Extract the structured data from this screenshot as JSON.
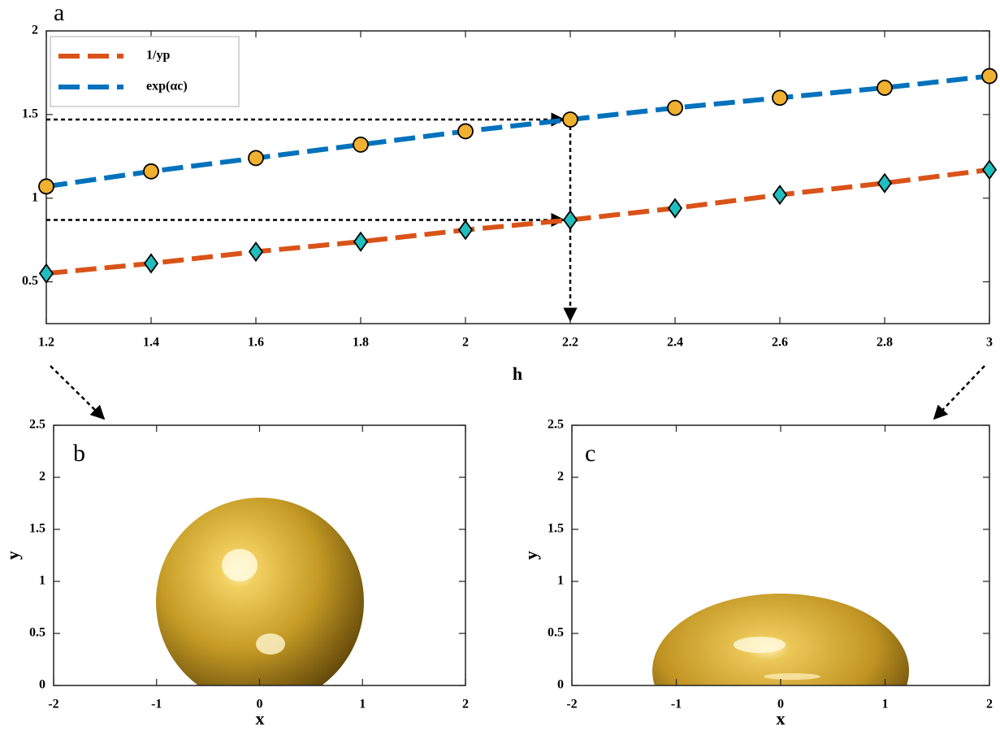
{
  "chart_data": [
    {
      "type": "line",
      "title": "a",
      "x_label": "h",
      "x": [
        1.2,
        1.4,
        1.6,
        1.8,
        2,
        2.2,
        2.4,
        2.6,
        2.8,
        3
      ],
      "series": [
        {
          "name": "1/yp",
          "color": "#d95319",
          "marker_color": "#1fbfbf",
          "marker": "diamond",
          "values": [
            0.55,
            0.61,
            0.68,
            0.74,
            0.81,
            0.87,
            0.94,
            1.02,
            1.09,
            1.17
          ]
        },
        {
          "name": "exp(αc)",
          "color": "#0072bd",
          "marker_color": "#f0b030",
          "marker": "circle",
          "values": [
            1.07,
            1.16,
            1.24,
            1.32,
            1.4,
            1.47,
            1.54,
            1.6,
            1.66,
            1.73
          ]
        }
      ],
      "xlim": [
        1.2,
        3
      ],
      "xticks": [
        1.2,
        1.4,
        1.6,
        1.8,
        2,
        2.2,
        2.4,
        2.6,
        2.8,
        3
      ],
      "ylim": [
        0.25,
        2
      ],
      "yticks": [
        0.5,
        1,
        1.5,
        2
      ],
      "legend": "upper left"
    },
    {
      "type": "surface",
      "title": "b",
      "x_label": "x",
      "y_label": "y",
      "xlim": [
        -2,
        2
      ],
      "xticks": [
        -2,
        -1,
        0,
        1,
        2
      ],
      "ylim": [
        0,
        2.5
      ],
      "yticks": [
        0,
        0.5,
        1,
        1.5,
        2,
        2.5
      ]
    },
    {
      "type": "surface",
      "title": "c",
      "x_label": "x",
      "y_label": "y",
      "xlim": [
        -2,
        2
      ],
      "xticks": [
        -2,
        -1,
        0,
        1,
        2
      ],
      "ylim": [
        0,
        2.5
      ],
      "yticks": [
        0,
        0.5,
        1,
        1.5,
        2,
        2.5
      ]
    }
  ]
}
